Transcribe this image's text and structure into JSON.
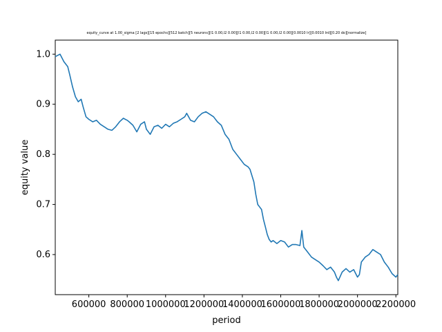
{
  "chart_data": {
    "type": "line",
    "title": "equity_curve at 1.00_sigma [2 lags][15 epochs][512 batch][5 neurons][l1 0.00,l2 0.00][l1 0.00,l2 0.00][l1 0.00,l2 0.00][0.0010 lr][0.0010 lrd][0.20 do][normalize]",
    "xlabel": "period",
    "ylabel": "equity value",
    "xlim": [
      425000,
      2210000
    ],
    "ylim": [
      0.52,
      1.028
    ],
    "x_ticks": [
      600000,
      800000,
      1000000,
      1200000,
      1400000,
      1600000,
      1800000,
      2000000,
      2200000
    ],
    "x_tick_labels": [
      "600000",
      "800000",
      "1000000",
      "1200000",
      "1400000",
      "1600000",
      "1800000",
      "2000000",
      "2200000"
    ],
    "y_ticks": [
      0.6,
      0.7,
      0.8,
      0.9,
      1.0
    ],
    "y_tick_labels": [
      "0.6",
      "0.7",
      "0.8",
      "0.9",
      "1.0"
    ],
    "grid": false,
    "series": [
      {
        "color": "#1f77b4",
        "x": [
          425000,
          450000,
          470000,
          490000,
          500000,
          515000,
          530000,
          545000,
          560000,
          570000,
          585000,
          600000,
          620000,
          640000,
          660000,
          680000,
          700000,
          720000,
          740000,
          760000,
          780000,
          800000,
          810000,
          830000,
          850000,
          870000,
          890000,
          900000,
          920000,
          940000,
          960000,
          980000,
          1000000,
          1020000,
          1040000,
          1060000,
          1080000,
          1100000,
          1110000,
          1130000,
          1150000,
          1170000,
          1190000,
          1210000,
          1230000,
          1250000,
          1270000,
          1290000,
          1310000,
          1330000,
          1350000,
          1370000,
          1390000,
          1410000,
          1430000,
          1440000,
          1460000,
          1470000,
          1480000,
          1490000,
          1500000,
          1510000,
          1520000,
          1530000,
          1540000,
          1550000,
          1560000,
          1580000,
          1600000,
          1620000,
          1640000,
          1660000,
          1680000,
          1700000,
          1710000,
          1720000,
          1740000,
          1760000,
          1780000,
          1800000,
          1820000,
          1840000,
          1860000,
          1880000,
          1890000,
          1900000,
          1920000,
          1940000,
          1960000,
          1980000,
          2000000,
          2010000,
          2020000,
          2040000,
          2060000,
          2080000,
          2100000,
          2120000,
          2140000,
          2160000,
          2180000,
          2200000,
          2210000
        ],
        "y": [
          0.995,
          1.0,
          0.985,
          0.975,
          0.96,
          0.935,
          0.915,
          0.905,
          0.91,
          0.895,
          0.875,
          0.87,
          0.865,
          0.868,
          0.86,
          0.855,
          0.85,
          0.848,
          0.855,
          0.865,
          0.872,
          0.868,
          0.865,
          0.858,
          0.845,
          0.86,
          0.865,
          0.85,
          0.84,
          0.855,
          0.858,
          0.852,
          0.86,
          0.855,
          0.862,
          0.865,
          0.87,
          0.875,
          0.882,
          0.868,
          0.865,
          0.875,
          0.882,
          0.885,
          0.88,
          0.875,
          0.865,
          0.858,
          0.84,
          0.83,
          0.81,
          0.8,
          0.79,
          0.78,
          0.775,
          0.77,
          0.745,
          0.72,
          0.7,
          0.695,
          0.69,
          0.67,
          0.655,
          0.64,
          0.63,
          0.625,
          0.628,
          0.622,
          0.628,
          0.625,
          0.615,
          0.62,
          0.62,
          0.618,
          0.648,
          0.615,
          0.605,
          0.595,
          0.59,
          0.585,
          0.578,
          0.57,
          0.575,
          0.565,
          0.555,
          0.548,
          0.565,
          0.572,
          0.565,
          0.57,
          0.555,
          0.56,
          0.585,
          0.595,
          0.6,
          0.61,
          0.605,
          0.6,
          0.585,
          0.575,
          0.562,
          0.555,
          0.56
        ]
      }
    ]
  }
}
